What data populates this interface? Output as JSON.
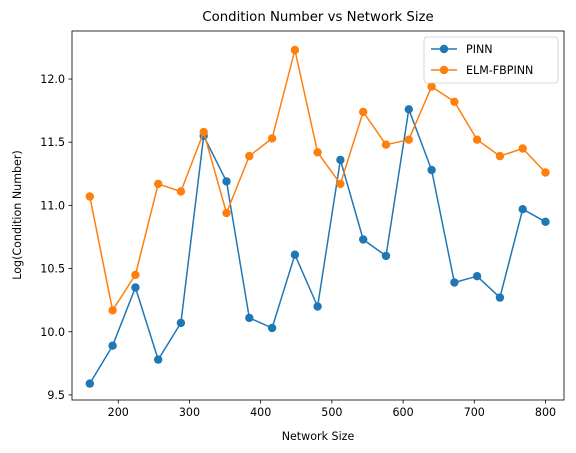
{
  "chart_data": {
    "type": "line",
    "title": "Condition Number vs Network Size",
    "xlabel": "Network Size",
    "ylabel": "Log(Condition Number)",
    "xlim": [
      135,
      826
    ],
    "ylim": [
      9.46,
      12.38
    ],
    "xticks": [
      200,
      300,
      400,
      500,
      600,
      700,
      800
    ],
    "xtick_labels": [
      "200",
      "300",
      "400",
      "500",
      "600",
      "700",
      "800"
    ],
    "yticks": [
      9.5,
      10.0,
      10.5,
      11.0,
      11.5,
      12.0
    ],
    "ytick_labels": [
      "9.5",
      "10.0",
      "10.5",
      "11.0",
      "11.5",
      "12.0"
    ],
    "grid": false,
    "legend_position": "top-right",
    "x": [
      160,
      192,
      224,
      256,
      288,
      320,
      352,
      384,
      416,
      448,
      480,
      512,
      544,
      576,
      608,
      640,
      672,
      704,
      736,
      768,
      800
    ],
    "series": [
      {
        "name": "PINN",
        "color": "#1f77b4",
        "marker": "circle",
        "values": [
          9.59,
          9.89,
          10.35,
          9.78,
          10.07,
          11.55,
          11.19,
          10.11,
          10.03,
          10.61,
          10.2,
          11.36,
          10.73,
          10.6,
          11.76,
          11.28,
          10.39,
          10.44,
          10.27,
          10.97,
          10.87
        ]
      },
      {
        "name": "ELM-FBPINN",
        "color": "#ff7f0e",
        "marker": "circle",
        "values": [
          11.07,
          10.17,
          10.45,
          11.17,
          11.11,
          11.58,
          10.94,
          11.39,
          11.53,
          12.23,
          11.42,
          11.17,
          11.74,
          11.48,
          11.52,
          11.94,
          11.82,
          11.52,
          11.39,
          11.45,
          11.26
        ]
      }
    ]
  }
}
